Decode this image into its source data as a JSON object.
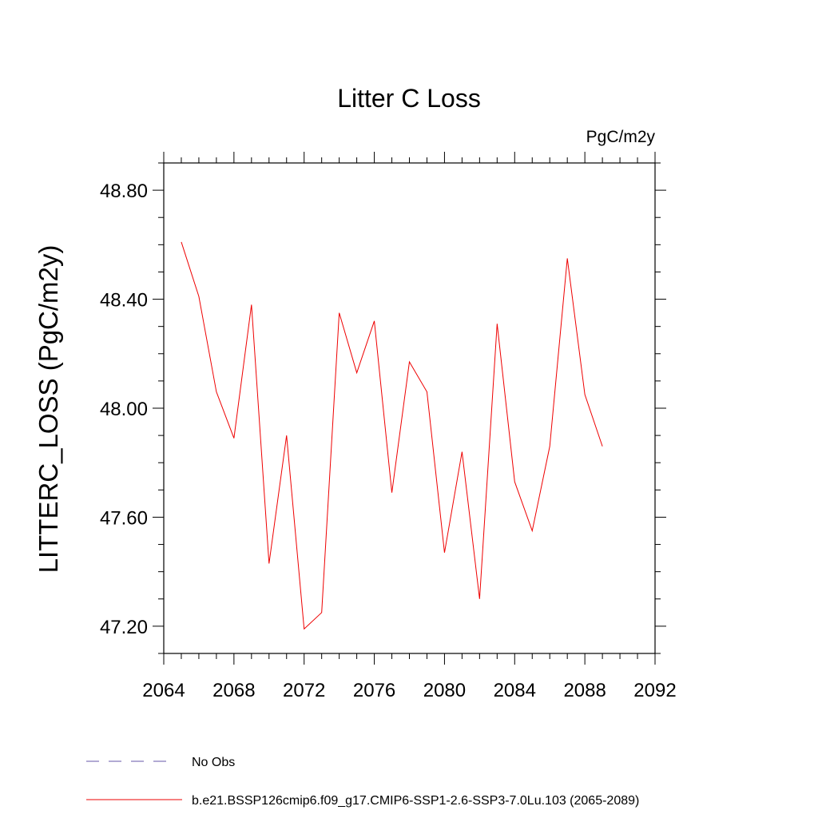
{
  "chart_data": {
    "type": "line",
    "title": "Litter C Loss",
    "units_label": "PgC/m2y",
    "ylabel": "LITTERC_LOSS  (PgC/m2y)",
    "xlabel": "",
    "xlim": [
      2064,
      2092
    ],
    "ylim": [
      47.1,
      48.9
    ],
    "x_ticks": [
      2064,
      2068,
      2072,
      2076,
      2080,
      2084,
      2088,
      2092
    ],
    "x_tick_labels": [
      "2064",
      "2068",
      "2072",
      "2076",
      "2080",
      "2084",
      "2088",
      "2092"
    ],
    "y_ticks": [
      47.2,
      47.6,
      48.0,
      48.4,
      48.8
    ],
    "y_tick_labels": [
      "47.20",
      "47.60",
      "48.00",
      "48.40",
      "48.80"
    ],
    "grid": false,
    "legend_position": "bottom",
    "legend": [
      {
        "label": "No Obs",
        "color": "#6655aa",
        "style": "dashed"
      },
      {
        "label": "b.e21.BSSP126cmip6.f09_g17.CMIP6-SSP1-2.6-SSP3-7.0Lu.103 (2065-2089)",
        "color": "#ee0000",
        "style": "solid"
      }
    ],
    "series": [
      {
        "color": "#ee0000",
        "x": [
          2065,
          2066,
          2067,
          2068,
          2069,
          2070,
          2071,
          2072,
          2073,
          2074,
          2075,
          2076,
          2077,
          2078,
          2079,
          2080,
          2081,
          2082,
          2083,
          2084,
          2085,
          2086,
          2087,
          2088,
          2089
        ],
        "values": [
          48.61,
          48.41,
          48.06,
          47.89,
          48.38,
          47.43,
          47.9,
          47.19,
          47.25,
          48.35,
          48.13,
          48.32,
          47.69,
          48.17,
          48.06,
          47.47,
          47.84,
          47.3,
          48.31,
          47.73,
          47.55,
          47.86,
          48.55,
          48.05,
          47.86
        ]
      }
    ]
  }
}
